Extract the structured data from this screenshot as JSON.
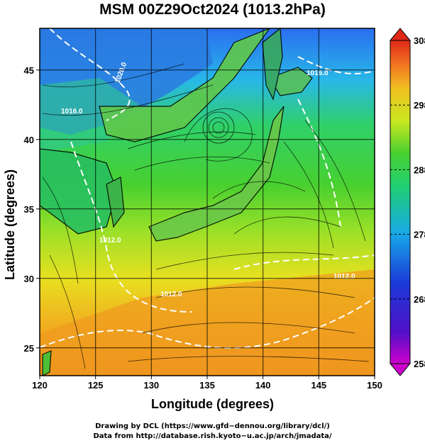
{
  "title": "MSM 00Z29Oct2024 (1013.2hPa)",
  "x_axis": {
    "label": "Longitude (degrees)",
    "range": [
      120,
      150
    ],
    "ticks": [
      "120",
      "125",
      "130",
      "135",
      "140",
      "145",
      "150"
    ]
  },
  "y_axis": {
    "label": "Latitude  (degrees)",
    "range": [
      23,
      48
    ],
    "ticks": [
      "25",
      "30",
      "35",
      "40",
      "45"
    ]
  },
  "colorbar": {
    "range": [
      258,
      308
    ],
    "ticks": [
      "308",
      "298",
      "288",
      "278",
      "268",
      "258"
    ],
    "colors": [
      "#cc00cc",
      "#1a1ad0",
      "#1e6cf0",
      "#18c8e0",
      "#22d07a",
      "#3cd034",
      "#b8e820",
      "#f0e020",
      "#f4a020",
      "#e8401c"
    ]
  },
  "contour_labels": [
    "1020.0",
    "1016.0",
    "1012.0",
    "1016.0",
    "1012.0",
    "1012.0"
  ],
  "credits": [
    "Drawing by DCL (https://www.gfd−dennou.org/library/dcl/)",
    "Data from http://database.rish.kyoto−u.ac.jp/arch/jmadata/"
  ]
}
